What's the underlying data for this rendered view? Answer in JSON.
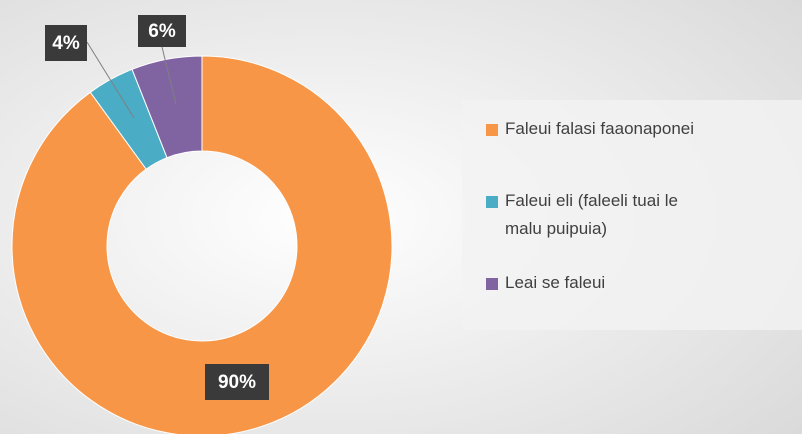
{
  "chart_data": {
    "type": "donut",
    "categories": [
      "Faleui falasi faaonaponei",
      "Faleui eli (faleeli tuai le malu puipuia)",
      "Leai se faleui"
    ],
    "values": [
      90,
      4,
      6
    ],
    "value_labels": [
      "90%",
      "4%",
      "6%"
    ],
    "colors": [
      "#F79646",
      "#4BACC6",
      "#8064A2"
    ],
    "legend": "right"
  }
}
